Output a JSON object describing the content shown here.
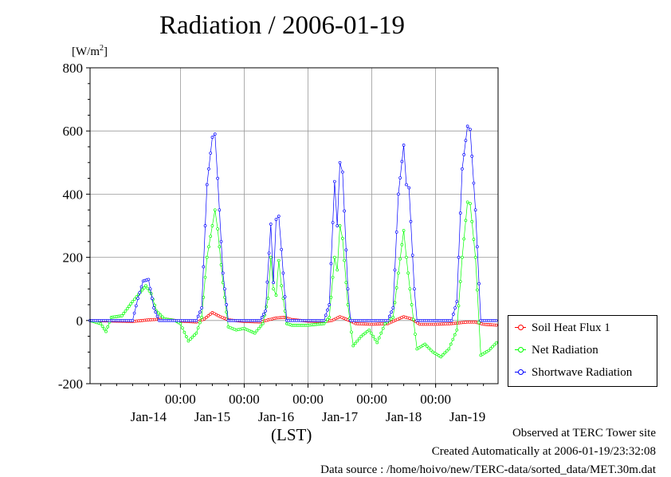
{
  "title": "Radiation / 2006-01-19",
  "unit_label": "[W/m",
  "unit_exp": "2",
  "unit_close": "]",
  "x_axis_label": "(LST)",
  "footer": {
    "line1": "Observed at TERC Tower site",
    "line2": "Created Automatically at 2006-01-19/23:32:08",
    "line3": "Data source : /home/hoivo/new/TERC-data/sorted_data/MET.30m.dat"
  },
  "colors": {
    "soil": "#ff0000",
    "net": "#00ff00",
    "shortwave": "#0000ff",
    "grid": "#999999"
  },
  "chart_data": {
    "type": "line",
    "ylim": [
      -200,
      800
    ],
    "y_ticks": [
      -200,
      0,
      200,
      400,
      600,
      800
    ],
    "x_range_days": [
      "2006-01-13T14:00",
      "2006-01-19T23:30"
    ],
    "x_tick_labels": [
      {
        "time": "2006-01-15T00:00",
        "label": "00:00"
      },
      {
        "time": "2006-01-16T00:00",
        "label": "00:00"
      },
      {
        "time": "2006-01-17T00:00",
        "label": "00:00"
      },
      {
        "time": "2006-01-18T00:00",
        "label": "00:00"
      },
      {
        "time": "2006-01-19T00:00",
        "label": "00:00"
      }
    ],
    "date_labels": [
      {
        "time": "2006-01-14T12:00",
        "label": "Jan-14"
      },
      {
        "time": "2006-01-15T12:00",
        "label": "Jan-15"
      },
      {
        "time": "2006-01-16T12:00",
        "label": "Jan-16"
      },
      {
        "time": "2006-01-17T12:00",
        "label": "Jan-17"
      },
      {
        "time": "2006-01-18T12:00",
        "label": "Jan-18"
      },
      {
        "time": "2006-01-19T12:00",
        "label": "Jan-19"
      }
    ],
    "grid": true,
    "legend_position": "right-bottom",
    "series": [
      {
        "name": "Soil Heat Flux 1",
        "color": "#ff0000",
        "points": [
          [
            "2006-01-13T14:00",
            0
          ],
          [
            "2006-01-14T00:00",
            -2
          ],
          [
            "2006-01-14T06:00",
            -3
          ],
          [
            "2006-01-14T12:00",
            2
          ],
          [
            "2006-01-14T18:00",
            5
          ],
          [
            "2006-01-15T00:00",
            -2
          ],
          [
            "2006-01-15T06:00",
            -5
          ],
          [
            "2006-01-15T09:00",
            5
          ],
          [
            "2006-01-15T12:00",
            25
          ],
          [
            "2006-01-15T15:00",
            12
          ],
          [
            "2006-01-15T18:00",
            2
          ],
          [
            "2006-01-16T00:00",
            -3
          ],
          [
            "2006-01-16T06:00",
            -5
          ],
          [
            "2006-01-16T09:00",
            2
          ],
          [
            "2006-01-16T12:00",
            8
          ],
          [
            "2006-01-16T15:00",
            10
          ],
          [
            "2006-01-16T18:00",
            3
          ],
          [
            "2006-01-17T00:00",
            -2
          ],
          [
            "2006-01-17T06:00",
            -4
          ],
          [
            "2006-01-17T09:00",
            0
          ],
          [
            "2006-01-17T12:00",
            12
          ],
          [
            "2006-01-17T15:00",
            2
          ],
          [
            "2006-01-17T18:00",
            -10
          ],
          [
            "2006-01-18T00:00",
            -12
          ],
          [
            "2006-01-18T06:00",
            -10
          ],
          [
            "2006-01-18T12:00",
            12
          ],
          [
            "2006-01-18T15:00",
            5
          ],
          [
            "2006-01-18T18:00",
            -12
          ],
          [
            "2006-01-19T00:00",
            -12
          ],
          [
            "2006-01-19T06:00",
            -10
          ],
          [
            "2006-01-19T12:00",
            -5
          ],
          [
            "2006-01-19T15:00",
            -5
          ],
          [
            "2006-01-19T18:00",
            -12
          ],
          [
            "2006-01-19T23:30",
            -15
          ]
        ]
      },
      {
        "name": "Net Radiation",
        "color": "#00ff00",
        "points": [
          [
            "2006-01-13T14:00",
            0
          ],
          [
            "2006-01-13T18:00",
            -10
          ],
          [
            "2006-01-13T20:00",
            -35
          ],
          [
            "2006-01-13T22:00",
            10
          ],
          [
            "2006-01-14T02:00",
            15
          ],
          [
            "2006-01-14T06:00",
            60
          ],
          [
            "2006-01-14T09:00",
            90
          ],
          [
            "2006-01-14T11:00",
            110
          ],
          [
            "2006-01-14T13:00",
            85
          ],
          [
            "2006-01-14T15:00",
            30
          ],
          [
            "2006-01-14T18:00",
            5
          ],
          [
            "2006-01-14T22:00",
            0
          ],
          [
            "2006-01-15T00:00",
            -10
          ],
          [
            "2006-01-15T03:00",
            -65
          ],
          [
            "2006-01-15T06:00",
            -40
          ],
          [
            "2006-01-15T08:00",
            10
          ],
          [
            "2006-01-15T10:00",
            200
          ],
          [
            "2006-01-15T12:00",
            300
          ],
          [
            "2006-01-15T13:00",
            350
          ],
          [
            "2006-01-15T14:00",
            290
          ],
          [
            "2006-01-15T16:00",
            120
          ],
          [
            "2006-01-15T18:00",
            -20
          ],
          [
            "2006-01-15T21:00",
            -30
          ],
          [
            "2006-01-16T00:00",
            -25
          ],
          [
            "2006-01-16T04:00",
            -40
          ],
          [
            "2006-01-16T07:00",
            -10
          ],
          [
            "2006-01-16T09:00",
            70
          ],
          [
            "2006-01-16T10:00",
            200
          ],
          [
            "2006-01-16T11:00",
            100
          ],
          [
            "2006-01-16T12:00",
            80
          ],
          [
            "2006-01-16T13:00",
            190
          ],
          [
            "2006-01-16T14:00",
            110
          ],
          [
            "2006-01-16T16:00",
            -10
          ],
          [
            "2006-01-16T18:00",
            -15
          ],
          [
            "2006-01-17T00:00",
            -15
          ],
          [
            "2006-01-17T06:00",
            -10
          ],
          [
            "2006-01-17T08:00",
            10
          ],
          [
            "2006-01-17T10:00",
            200
          ],
          [
            "2006-01-17T11:00",
            160
          ],
          [
            "2006-01-17T12:00",
            300
          ],
          [
            "2006-01-17T13:00",
            260
          ],
          [
            "2006-01-17T15:00",
            50
          ],
          [
            "2006-01-17T17:00",
            -80
          ],
          [
            "2006-01-17T20:00",
            -50
          ],
          [
            "2006-01-17T23:00",
            -30
          ],
          [
            "2006-01-18T02:00",
            -70
          ],
          [
            "2006-01-18T05:00",
            -10
          ],
          [
            "2006-01-18T08:00",
            10
          ],
          [
            "2006-01-18T10:00",
            150
          ],
          [
            "2006-01-18T12:00",
            285
          ],
          [
            "2006-01-18T13:00",
            200
          ],
          [
            "2006-01-18T15:00",
            50
          ],
          [
            "2006-01-18T17:00",
            -90
          ],
          [
            "2006-01-18T20:00",
            -75
          ],
          [
            "2006-01-18T23:00",
            -100
          ],
          [
            "2006-01-19T02:00",
            -115
          ],
          [
            "2006-01-19T05:00",
            -90
          ],
          [
            "2006-01-19T08:00",
            -30
          ],
          [
            "2006-01-19T10:00",
            200
          ],
          [
            "2006-01-19T12:00",
            375
          ],
          [
            "2006-01-19T13:00",
            370
          ],
          [
            "2006-01-19T15:00",
            200
          ],
          [
            "2006-01-19T17:00",
            -110
          ],
          [
            "2006-01-19T20:00",
            -95
          ],
          [
            "2006-01-19T23:30",
            -65
          ]
        ]
      },
      {
        "name": "Shortwave Radiation",
        "color": "#0000ff",
        "points": [
          [
            "2006-01-13T14:00",
            0
          ],
          [
            "2006-01-14T06:00",
            0
          ],
          [
            "2006-01-14T08:00",
            70
          ],
          [
            "2006-01-14T10:00",
            125
          ],
          [
            "2006-01-14T12:00",
            130
          ],
          [
            "2006-01-14T14:00",
            40
          ],
          [
            "2006-01-14T16:00",
            0
          ],
          [
            "2006-01-15T06:00",
            0
          ],
          [
            "2006-01-15T08:00",
            40
          ],
          [
            "2006-01-15T10:00",
            430
          ],
          [
            "2006-01-15T12:00",
            580
          ],
          [
            "2006-01-15T13:00",
            590
          ],
          [
            "2006-01-15T14:00",
            450
          ],
          [
            "2006-01-15T16:00",
            150
          ],
          [
            "2006-01-15T18:00",
            0
          ],
          [
            "2006-01-16T06:00",
            0
          ],
          [
            "2006-01-16T08:00",
            30
          ],
          [
            "2006-01-16T10:00",
            305
          ],
          [
            "2006-01-16T11:00",
            120
          ],
          [
            "2006-01-16T12:00",
            320
          ],
          [
            "2006-01-16T13:00",
            330
          ],
          [
            "2006-01-16T14:00",
            225
          ],
          [
            "2006-01-16T16:00",
            0
          ],
          [
            "2006-01-17T06:00",
            0
          ],
          [
            "2006-01-17T08:00",
            50
          ],
          [
            "2006-01-17T10:00",
            440
          ],
          [
            "2006-01-17T11:00",
            300
          ],
          [
            "2006-01-17T12:00",
            500
          ],
          [
            "2006-01-17T13:00",
            470
          ],
          [
            "2006-01-17T15:00",
            100
          ],
          [
            "2006-01-17T16:00",
            0
          ],
          [
            "2006-01-18T06:00",
            0
          ],
          [
            "2006-01-18T08:00",
            40
          ],
          [
            "2006-01-18T10:00",
            400
          ],
          [
            "2006-01-18T12:00",
            555
          ],
          [
            "2006-01-18T13:00",
            430
          ],
          [
            "2006-01-18T14:00",
            420
          ],
          [
            "2006-01-18T16:00",
            100
          ],
          [
            "2006-01-18T17:00",
            0
          ],
          [
            "2006-01-19T06:00",
            0
          ],
          [
            "2006-01-19T08:00",
            60
          ],
          [
            "2006-01-19T10:00",
            480
          ],
          [
            "2006-01-19T12:00",
            615
          ],
          [
            "2006-01-19T13:00",
            605
          ],
          [
            "2006-01-19T15:00",
            350
          ],
          [
            "2006-01-19T17:00",
            0
          ],
          [
            "2006-01-19T23:30",
            0
          ]
        ]
      }
    ]
  }
}
